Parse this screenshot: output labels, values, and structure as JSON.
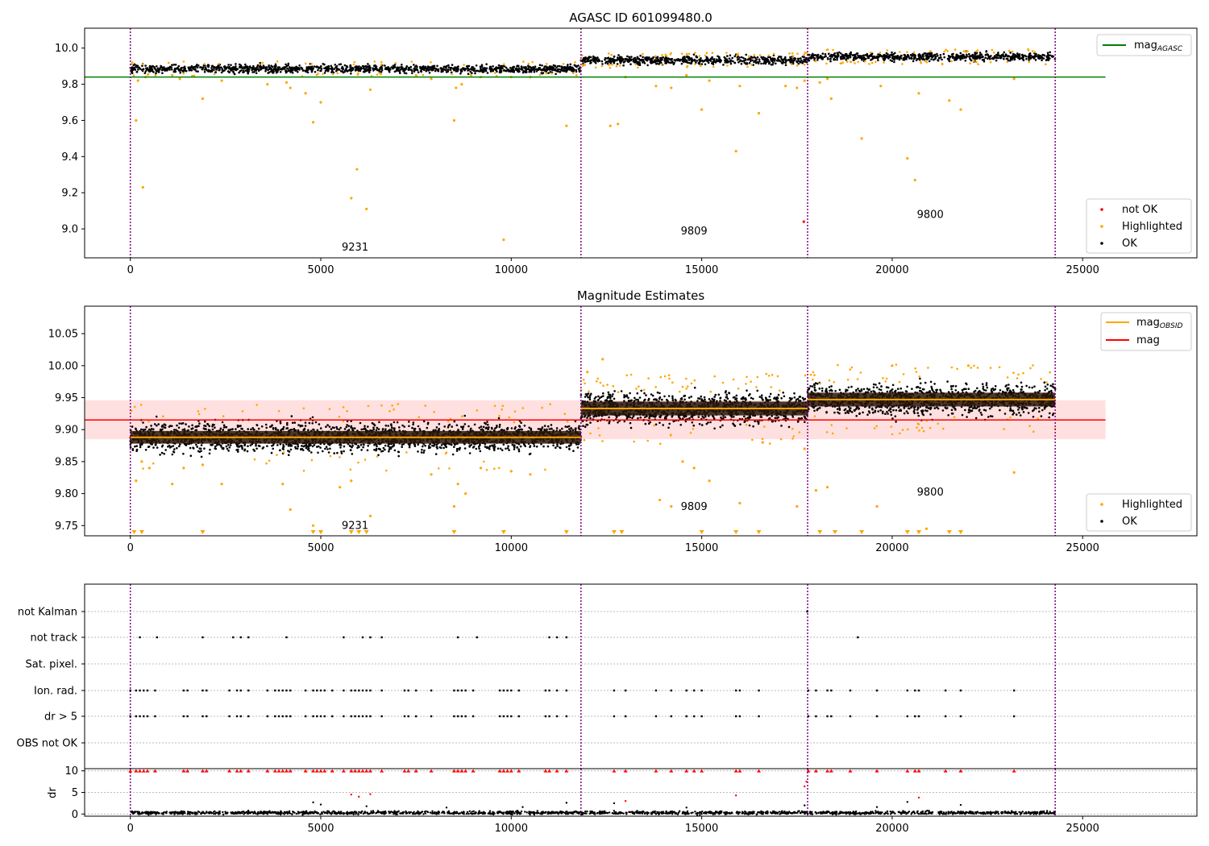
{
  "chart_data": [
    {
      "type": "scatter",
      "title": "AGASC ID 601099480.0",
      "xlim": [
        -1200,
        28000
      ],
      "ylim": [
        8.84,
        10.11
      ],
      "xticks": [
        0,
        5000,
        10000,
        15000,
        20000,
        25000
      ],
      "yticks": [
        9.0,
        9.2,
        9.4,
        9.6,
        9.8,
        10.0
      ],
      "ytick_labels": [
        "9.0",
        "9.2",
        "9.4",
        "9.6",
        "9.8",
        "10.0"
      ],
      "grid": false,
      "legend_top": {
        "placement": "top-right",
        "entries": [
          {
            "label_main": "mag",
            "label_sub": "AGASC",
            "color": "#008000",
            "kind": "line"
          }
        ]
      },
      "legend_bottom": {
        "placement": "bottom-right",
        "entries": [
          {
            "label": "not OK",
            "color": "#ff0000",
            "kind": "marker"
          },
          {
            "label": "Highlighted",
            "color": "#ffa500",
            "kind": "marker"
          },
          {
            "label": "OK",
            "color": "#000000",
            "kind": "marker"
          }
        ]
      },
      "agasc_mag": 9.84,
      "agasc_line_xrange": [
        -1200,
        25600
      ],
      "obsid_boundaries": [
        0,
        11830,
        17780,
        24280
      ],
      "obsid_labels": [
        {
          "text": "9231",
          "x": 5900,
          "y": 8.88
        },
        {
          "text": "9809",
          "x": 14800,
          "y": 8.97
        },
        {
          "text": "9800",
          "x": 21000,
          "y": 9.06
        }
      ],
      "ok_bands": [
        {
          "x": [
            0,
            11830
          ],
          "mean": 9.885,
          "spread": 0.022
        },
        {
          "x": [
            11830,
            17780
          ],
          "mean": 9.933,
          "spread": 0.022
        },
        {
          "x": [
            17780,
            24280
          ],
          "mean": 9.952,
          "spread": 0.022
        }
      ],
      "highlighted_points": [
        [
          150,
          9.6
        ],
        [
          330,
          9.23
        ],
        [
          200,
          9.82
        ],
        [
          400,
          9.84
        ],
        [
          1100,
          9.85
        ],
        [
          1300,
          9.83
        ],
        [
          1900,
          9.72
        ],
        [
          2400,
          9.82
        ],
        [
          3600,
          9.8
        ],
        [
          4100,
          9.81
        ],
        [
          4200,
          9.78
        ],
        [
          4600,
          9.75
        ],
        [
          4800,
          9.59
        ],
        [
          5000,
          9.7
        ],
        [
          5800,
          9.17
        ],
        [
          5950,
          9.33
        ],
        [
          6200,
          9.11
        ],
        [
          6300,
          9.77
        ],
        [
          7500,
          9.85
        ],
        [
          7900,
          9.83
        ],
        [
          8500,
          9.6
        ],
        [
          8550,
          9.78
        ],
        [
          8700,
          9.8
        ],
        [
          9200,
          9.84
        ],
        [
          9800,
          8.94
        ],
        [
          10000,
          9.84
        ],
        [
          10500,
          9.84
        ],
        [
          11450,
          9.57
        ],
        [
          12600,
          9.57
        ],
        [
          12800,
          9.58
        ],
        [
          13000,
          9.84
        ],
        [
          13800,
          9.79
        ],
        [
          14200,
          9.78
        ],
        [
          14600,
          9.85
        ],
        [
          15000,
          9.66
        ],
        [
          15200,
          9.82
        ],
        [
          15900,
          9.43
        ],
        [
          16000,
          9.79
        ],
        [
          16500,
          9.64
        ],
        [
          17200,
          9.79
        ],
        [
          17500,
          9.78
        ],
        [
          17700,
          9.82
        ],
        [
          18100,
          9.81
        ],
        [
          18300,
          9.83
        ],
        [
          18400,
          9.72
        ],
        [
          19200,
          9.5
        ],
        [
          19700,
          9.79
        ],
        [
          20400,
          9.39
        ],
        [
          20600,
          9.27
        ],
        [
          20700,
          9.75
        ],
        [
          21500,
          9.71
        ],
        [
          21800,
          9.66
        ],
        [
          23200,
          9.83
        ]
      ],
      "not_ok_points": [
        [
          17680,
          9.04
        ]
      ]
    },
    {
      "type": "scatter",
      "title": "Magnitude Estimates",
      "xlim": [
        -1200,
        28000
      ],
      "ylim": [
        9.734,
        10.093
      ],
      "xticks": [
        0,
        5000,
        10000,
        15000,
        20000,
        25000
      ],
      "yticks": [
        9.75,
        9.8,
        9.85,
        9.9,
        9.95,
        10.0,
        10.05
      ],
      "ytick_labels": [
        "9.75",
        "9.80",
        "9.85",
        "9.90",
        "9.95",
        "10.00",
        "10.05"
      ],
      "grid": false,
      "legend_top": {
        "placement": "top-right",
        "entries": [
          {
            "label_main": "mag",
            "label_sub": "OBSID",
            "color": "#ffa500",
            "kind": "line"
          },
          {
            "label_main": "mag",
            "label_sub": "",
            "color": "#ff0000",
            "kind": "line"
          }
        ]
      },
      "legend_bottom": {
        "placement": "bottom-right",
        "entries": [
          {
            "label": "Highlighted",
            "color": "#ffa500",
            "kind": "marker"
          },
          {
            "label": "OK",
            "color": "#000000",
            "kind": "marker"
          }
        ]
      },
      "mean_mag": 9.915,
      "mean_band": [
        9.885,
        9.946
      ],
      "mean_line_xrange": [
        -1200,
        25600
      ],
      "obsid_boundaries": [
        0,
        11830,
        17780,
        24280
      ],
      "obsid_mags": [
        {
          "x": [
            0,
            11830
          ],
          "mag": 9.888
        },
        {
          "x": [
            11830,
            17780
          ],
          "mag": 9.933
        },
        {
          "x": [
            17780,
            24280
          ],
          "mag": 9.947
        }
      ],
      "obsid_labels": [
        {
          "text": "9231",
          "x": 5900,
          "y": 9.745
        },
        {
          "text": "9809",
          "x": 14800,
          "y": 9.774
        },
        {
          "text": "9800",
          "x": 21000,
          "y": 9.797
        }
      ],
      "ok_bands": [
        {
          "x": [
            0,
            11830
          ],
          "mean": 9.888,
          "spread": 0.022
        },
        {
          "x": [
            11830,
            17780
          ],
          "mean": 9.933,
          "spread": 0.024
        },
        {
          "x": [
            17780,
            24280
          ],
          "mean": 9.947,
          "spread": 0.024
        }
      ],
      "highlighted_points": [
        [
          150,
          9.82
        ],
        [
          300,
          9.85
        ],
        [
          500,
          9.84
        ],
        [
          1100,
          9.815
        ],
        [
          1400,
          9.84
        ],
        [
          1900,
          9.845
        ],
        [
          2400,
          9.815
        ],
        [
          4000,
          9.815
        ],
        [
          4200,
          9.775
        ],
        [
          4800,
          9.75
        ],
        [
          5000,
          9.74
        ],
        [
          5500,
          9.81
        ],
        [
          5800,
          9.82
        ],
        [
          6300,
          9.765
        ],
        [
          7900,
          9.83
        ],
        [
          8500,
          9.78
        ],
        [
          8600,
          9.815
        ],
        [
          8800,
          9.8
        ],
        [
          9200,
          9.84
        ],
        [
          10000,
          9.835
        ],
        [
          10500,
          9.83
        ],
        [
          12000,
          9.99
        ],
        [
          12400,
          10.01
        ],
        [
          13900,
          9.79
        ],
        [
          14200,
          9.78
        ],
        [
          14500,
          9.85
        ],
        [
          14800,
          9.84
        ],
        [
          15200,
          9.82
        ],
        [
          16000,
          9.785
        ],
        [
          16600,
          9.88
        ],
        [
          17500,
          9.78
        ],
        [
          17700,
          9.87
        ],
        [
          18000,
          9.805
        ],
        [
          18300,
          9.81
        ],
        [
          19600,
          9.78
        ],
        [
          20700,
          9.74
        ],
        [
          20900,
          9.745
        ],
        [
          23200,
          9.833
        ],
        [
          20000,
          10.0
        ],
        [
          22000,
          10.0
        ]
      ],
      "lower_limit_markers": [
        100,
        300,
        1900,
        4800,
        5000,
        5800,
        6000,
        6200,
        8500,
        9800,
        11450,
        12700,
        12900,
        15000,
        15900,
        16500,
        18100,
        18500,
        19200,
        20400,
        20700,
        21500,
        21800
      ]
    },
    {
      "type": "scatter",
      "title": "",
      "xlim": [
        -1200,
        28000
      ],
      "xticks": [
        0,
        5000,
        10000,
        15000,
        20000,
        25000
      ],
      "category_rows": [
        "not Kalman",
        "not track",
        "Sat. pixel.",
        "Ion. rad.",
        "dr > 5",
        "OBS not OK"
      ],
      "obsid_boundaries": [
        0,
        11830,
        17780,
        24280
      ],
      "flags": {
        "not Kalman": [
          17770
        ],
        "not track": [
          250,
          700,
          1900,
          2700,
          2900,
          3100,
          4100,
          5600,
          6100,
          6300,
          6600,
          8600,
          9100,
          11000,
          11200,
          11450,
          19100
        ],
        "Sat. pixel.": [],
        "Ion. rad.": [
          0,
          150,
          250,
          350,
          450,
          650,
          1400,
          1500,
          1900,
          2000,
          2600,
          2800,
          2900,
          3100,
          3600,
          3800,
          3900,
          4000,
          4100,
          4200,
          4600,
          4800,
          4900,
          5000,
          5100,
          5300,
          5600,
          5800,
          5900,
          6000,
          6100,
          6200,
          6300,
          6600,
          7200,
          7300,
          7500,
          7900,
          8500,
          8600,
          8700,
          8800,
          9000,
          9700,
          9800,
          9900,
          10000,
          10200,
          10900,
          11000,
          11200,
          11450,
          12700,
          13000,
          13800,
          14200,
          14600,
          14800,
          15000,
          15900,
          16000,
          16500,
          17800,
          18000,
          18300,
          18400,
          18900,
          19600,
          20400,
          20600,
          20700,
          21400,
          21800,
          23200
        ],
        "dr > 5": [
          0,
          150,
          250,
          350,
          450,
          650,
          1400,
          1500,
          1900,
          2000,
          2600,
          2800,
          2900,
          3100,
          3600,
          3800,
          3900,
          4000,
          4100,
          4200,
          4600,
          4800,
          4900,
          5000,
          5100,
          5300,
          5600,
          5800,
          5900,
          6000,
          6100,
          6200,
          6300,
          6600,
          7200,
          7300,
          7500,
          7900,
          8500,
          8600,
          8700,
          8800,
          9000,
          9700,
          9800,
          9900,
          10000,
          10200,
          10900,
          11000,
          11200,
          11450,
          12700,
          13000,
          13800,
          14200,
          14600,
          14800,
          15000,
          15900,
          16000,
          16500,
          17800,
          18000,
          18300,
          18400,
          18900,
          19600,
          20400,
          20600,
          20700,
          21400,
          21800,
          23200
        ],
        "OBS not OK": []
      }
    },
    {
      "type": "scatter",
      "title": "",
      "ylabel": "dr",
      "xlim": [
        -1200,
        28000
      ],
      "ylim": [
        -0.5,
        10.5
      ],
      "xticks": [
        0,
        5000,
        10000,
        15000,
        20000,
        25000
      ],
      "xtick_labels": [
        "0",
        "5000",
        "10000",
        "15000",
        "20000",
        "25000"
      ],
      "yticks": [
        0,
        5,
        10
      ],
      "ytick_labels": [
        "0",
        "5",
        "10"
      ],
      "obsid_boundaries": [
        0,
        11830,
        17780,
        24280
      ],
      "ok_baseline": 0.3,
      "ok_outliers": [
        [
          4800,
          2.7
        ],
        [
          5000,
          2.2
        ],
        [
          6200,
          1.8
        ],
        [
          8300,
          1.5
        ],
        [
          10300,
          1.6
        ],
        [
          11450,
          2.6
        ],
        [
          12700,
          2.5
        ],
        [
          14600,
          1.5
        ],
        [
          17700,
          2.0
        ],
        [
          19600,
          1.6
        ],
        [
          20400,
          2.8
        ],
        [
          21800,
          2.1
        ]
      ],
      "capped_red_points": [
        0,
        150,
        250,
        350,
        450,
        650,
        1400,
        1500,
        1900,
        2000,
        2600,
        2800,
        2900,
        3100,
        3600,
        3800,
        3900,
        4000,
        4100,
        4200,
        4600,
        4800,
        4900,
        5000,
        5100,
        5300,
        5600,
        5800,
        5900,
        6000,
        6100,
        6200,
        6300,
        6600,
        7200,
        7300,
        7500,
        7900,
        8500,
        8600,
        8700,
        8800,
        9000,
        9700,
        9800,
        9900,
        10000,
        10200,
        10900,
        11000,
        11200,
        11450,
        12700,
        13000,
        13800,
        14200,
        14600,
        14800,
        15000,
        15900,
        16000,
        16500,
        17800,
        18000,
        18300,
        18400,
        18900,
        19600,
        20400,
        20600,
        20700,
        21400,
        21800,
        23200
      ],
      "red_points": [
        [
          5800,
          4.5
        ],
        [
          6000,
          4.0
        ],
        [
          6300,
          4.6
        ],
        [
          13000,
          3.0
        ],
        [
          15900,
          4.3
        ],
        [
          17700,
          6.4
        ],
        [
          17750,
          7.5
        ],
        [
          20700,
          3.8
        ]
      ]
    }
  ]
}
